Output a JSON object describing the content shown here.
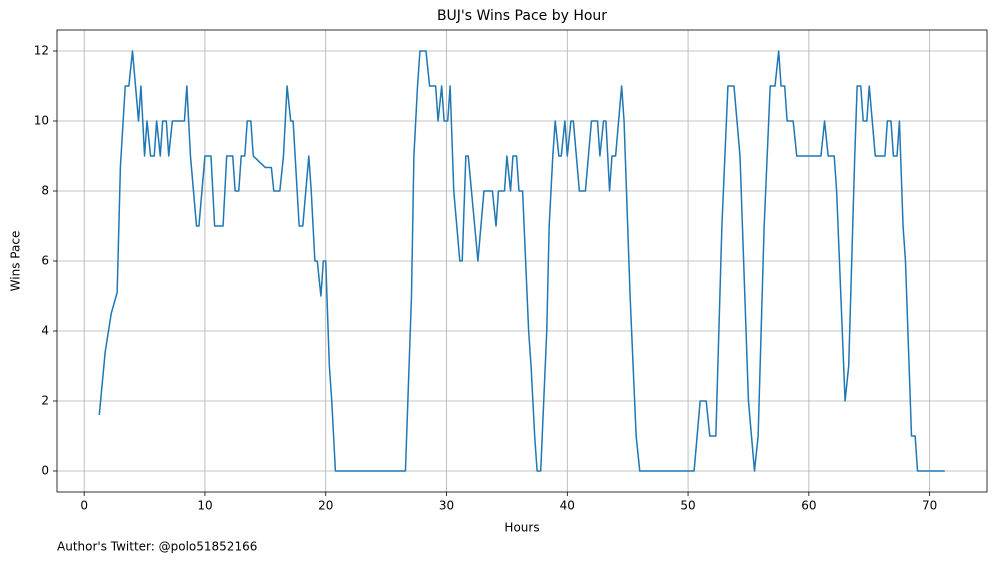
{
  "chart_data": {
    "type": "line",
    "title": "BUJ's Wins Pace by Hour",
    "xlabel": "Hours",
    "ylabel": "Wins Pace",
    "annotation": "Author's Twitter: @polo51852166",
    "color": "#1f77b4",
    "grid": true,
    "xlim": [
      -2.25,
      74.75
    ],
    "ylim": [
      -0.6,
      12.6
    ],
    "xticks": [
      0,
      10,
      20,
      30,
      40,
      50,
      60,
      70
    ],
    "yticks": [
      0,
      2,
      4,
      6,
      8,
      10,
      12
    ],
    "x": [
      1.25,
      1.74,
      2.24,
      2.73,
      3.0,
      3.4,
      3.7,
      4.0,
      4.5,
      4.7,
      5.0,
      5.2,
      5.5,
      5.8,
      6.0,
      6.3,
      6.5,
      6.8,
      7.0,
      7.3,
      8.0,
      8.3,
      8.5,
      8.8,
      9.3,
      9.5,
      10.0,
      10.5,
      10.8,
      11.5,
      11.8,
      12.3,
      12.5,
      12.8,
      13.0,
      13.3,
      13.5,
      13.8,
      14.0,
      15.0,
      15.5,
      15.7,
      16.2,
      16.5,
      16.8,
      17.1,
      17.3,
      17.8,
      18.1,
      18.6,
      18.8,
      19.1,
      19.3,
      19.6,
      19.8,
      20.0,
      20.3,
      20.5,
      20.8,
      26.6,
      26.8,
      27.1,
      27.3,
      27.6,
      27.8,
      28.3,
      28.6,
      29.1,
      29.3,
      29.6,
      29.8,
      30.1,
      30.3,
      30.6,
      31.1,
      31.3,
      31.6,
      31.8,
      32.6,
      33.1,
      33.8,
      34.1,
      34.3,
      34.8,
      35.0,
      35.3,
      35.5,
      35.8,
      36.0,
      36.3,
      36.8,
      37.0,
      37.3,
      37.5,
      37.8,
      38.3,
      38.5,
      38.8,
      39.0,
      39.3,
      39.5,
      39.8,
      40.0,
      40.3,
      40.5,
      41.0,
      41.5,
      42.0,
      42.5,
      42.7,
      43.0,
      43.2,
      43.5,
      43.7,
      44.0,
      44.5,
      44.7,
      45.2,
      45.7,
      46.0,
      50.5,
      51.0,
      51.5,
      51.8,
      52.3,
      52.8,
      53.3,
      53.8,
      54.3,
      54.5,
      54.8,
      55.0,
      55.5,
      55.8,
      56.3,
      56.8,
      57.2,
      57.5,
      57.7,
      58.0,
      58.2,
      58.7,
      59.0,
      60.8,
      61.0,
      61.3,
      61.6,
      62.1,
      62.3,
      63.0,
      63.3,
      63.8,
      64.0,
      64.3,
      64.5,
      64.8,
      65.0,
      65.5,
      66.3,
      66.5,
      66.8,
      67.0,
      67.3,
      67.5,
      67.8,
      68.0,
      68.5,
      68.8,
      69.0,
      71.25
    ],
    "values": [
      1.6,
      3.4,
      4.5,
      5.1,
      8.7,
      11,
      11,
      12,
      10,
      11,
      9,
      10,
      9,
      9,
      10,
      9,
      10,
      10,
      9,
      10,
      10,
      10,
      11,
      9,
      7,
      7,
      9,
      9,
      7,
      7,
      9,
      9,
      8,
      8,
      9,
      9,
      10,
      10,
      9,
      8.67,
      8.67,
      8,
      8,
      9,
      11,
      10,
      10,
      7,
      7,
      9,
      8,
      6,
      6,
      5,
      6,
      6,
      3,
      2,
      0,
      0,
      2,
      5,
      9,
      11,
      12,
      12,
      11,
      11,
      10,
      11,
      10,
      10,
      11,
      8,
      6,
      6,
      9,
      9,
      6,
      8,
      8,
      7,
      8,
      8,
      9,
      8,
      9,
      9,
      8,
      8,
      4,
      3,
      1,
      0,
      0,
      4,
      7,
      9,
      10,
      9,
      9,
      10,
      9,
      10,
      10,
      8,
      8,
      10,
      10,
      9,
      10,
      10,
      8,
      9,
      9,
      11,
      10,
      5,
      1,
      0,
      0,
      2,
      2,
      1,
      1,
      7,
      11,
      11,
      9,
      7,
      4,
      2,
      0,
      1,
      7,
      11,
      11,
      12,
      11,
      11,
      10,
      10,
      9,
      9,
      9,
      10,
      9,
      9,
      8,
      2,
      3,
      9,
      11,
      11,
      10,
      10,
      11,
      9,
      9,
      10,
      10,
      9,
      9,
      10,
      7,
      6,
      1,
      1,
      0,
      0
    ]
  }
}
